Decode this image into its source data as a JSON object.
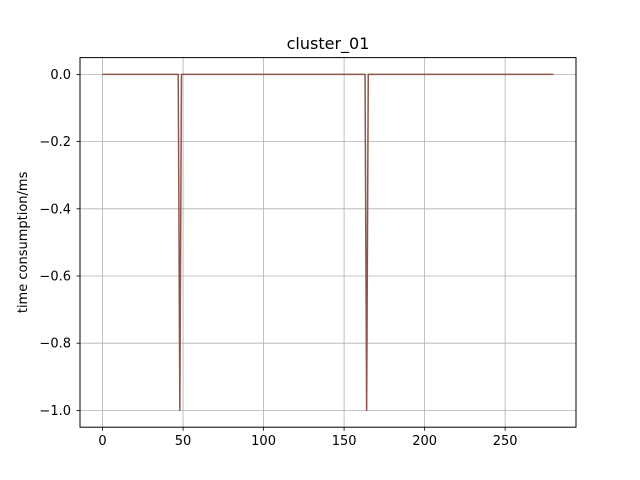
{
  "chart_data": {
    "type": "line",
    "title": "cluster_01",
    "xlabel": "",
    "ylabel": "time consumption/ms",
    "xlim": [
      -14,
      294
    ],
    "ylim": [
      -1.05,
      0.05
    ],
    "xticks": [
      0,
      50,
      100,
      150,
      200,
      250
    ],
    "yticks": [
      0.0,
      -0.2,
      -0.4,
      -0.6,
      -0.8,
      -1.0
    ],
    "xtick_labels": [
      "0",
      "50",
      "100",
      "150",
      "200",
      "250"
    ],
    "ytick_labels": [
      "0.0",
      "−0.2",
      "−0.4",
      "−0.6",
      "−0.8",
      "−1.0"
    ],
    "grid": true,
    "series": [
      {
        "color": "#8c564b",
        "x": [
          0,
          47,
          48,
          49,
          163,
          164,
          165,
          280
        ],
        "y": [
          0,
          0,
          -1,
          0,
          0,
          -1,
          0,
          0
        ]
      }
    ]
  }
}
